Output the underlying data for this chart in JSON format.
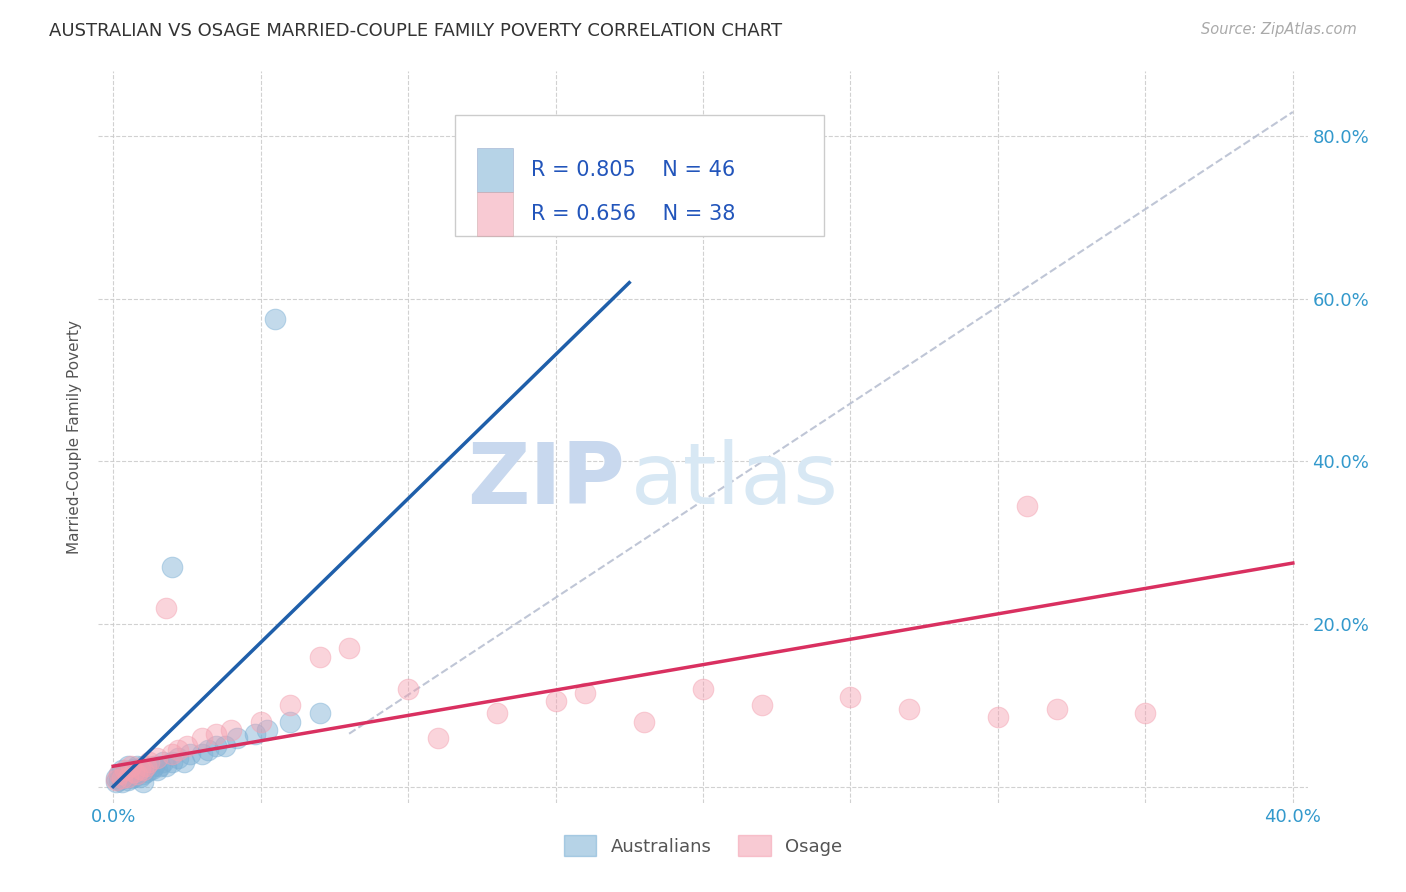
{
  "title": "AUSTRALIAN VS OSAGE MARRIED-COUPLE FAMILY POVERTY CORRELATION CHART",
  "source": "Source: ZipAtlas.com",
  "ylabel": "Married-Couple Family Poverty",
  "xlim": [
    -0.005,
    0.405
  ],
  "ylim": [
    -0.02,
    0.88
  ],
  "xtick_pos": [
    0.0,
    0.05,
    0.1,
    0.15,
    0.2,
    0.25,
    0.3,
    0.35,
    0.4
  ],
  "ytick_pos": [
    0.0,
    0.2,
    0.4,
    0.6,
    0.8
  ],
  "right_ytick_labels": [
    "",
    "20.0%",
    "40.0%",
    "60.0%",
    "80.0%"
  ],
  "grid_color": "#cccccc",
  "background_color": "#ffffff",
  "blue_color": "#7bafd4",
  "pink_color": "#f4a0b0",
  "blue_line_color": "#1f5faa",
  "pink_line_color": "#d93060",
  "diag_color": "#b0b8cc",
  "legend_R1": "R = 0.805",
  "legend_N1": "N = 46",
  "legend_R2": "R = 0.656",
  "legend_N2": "N = 38",
  "legend_label1": "Australians",
  "legend_label2": "Osage",
  "watermark_zip": "ZIP",
  "watermark_atlas": "atlas",
  "aus_line_x": [
    0.0,
    0.175
  ],
  "aus_line_y": [
    0.0,
    0.62
  ],
  "osage_line_x": [
    0.0,
    0.4
  ],
  "osage_line_y": [
    0.025,
    0.275
  ],
  "diag_line_x": [
    0.08,
    0.4
  ],
  "diag_line_y": [
    0.065,
    0.83
  ]
}
